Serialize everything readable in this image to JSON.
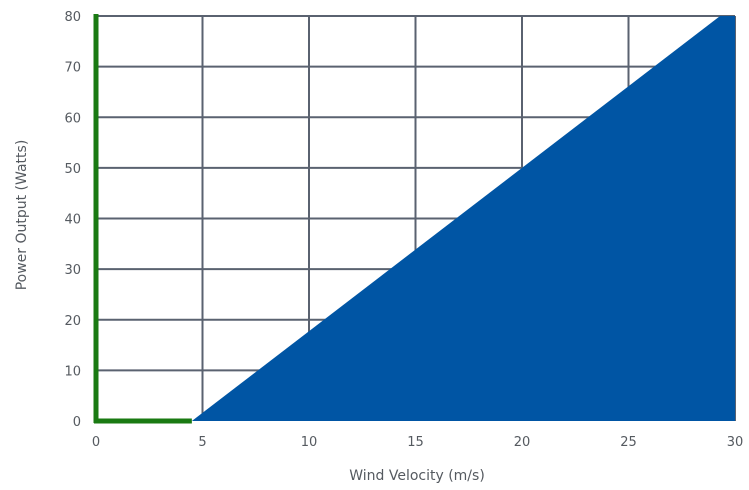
{
  "chart_data": {
    "type": "area",
    "title": "",
    "xlabel": "Wind Velocity (m/s)",
    "ylabel": "Power Output (Watts)",
    "xlim": [
      0,
      30
    ],
    "ylim": [
      0,
      80
    ],
    "x_ticks": [
      0,
      5,
      10,
      15,
      20,
      25,
      30
    ],
    "y_ticks": [
      0,
      10,
      20,
      30,
      40,
      50,
      60,
      70,
      80
    ],
    "grid": true,
    "legend": "none",
    "series": [
      {
        "x": [
          4.5,
          29.3
        ],
        "y": [
          0,
          80
        ]
      }
    ],
    "colors": {
      "fill": "#0055a4",
      "grid": "#5a6270",
      "axis": "#1a7a12",
      "text": "#555a60"
    }
  }
}
